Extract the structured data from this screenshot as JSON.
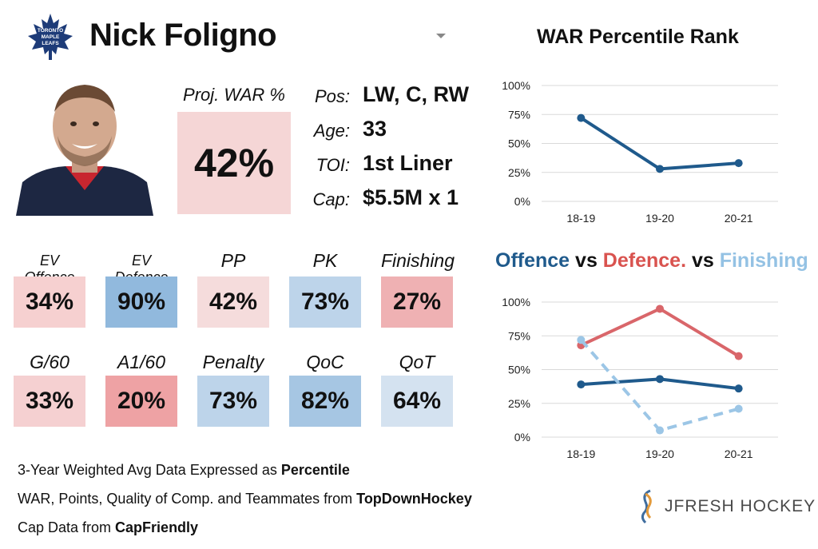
{
  "player": {
    "name": "Nick Foligno",
    "team_logo_text": [
      "TORONTO",
      "MAPLE",
      "LEAFS"
    ]
  },
  "proj_war": {
    "label": "Proj. WAR %",
    "value": "42%",
    "color": "#f5d6d6"
  },
  "bio": [
    {
      "label": "Pos:",
      "value": "LW, C, RW"
    },
    {
      "label": "Age:",
      "value": "33"
    },
    {
      "label": "TOI:",
      "value": "1st Liner"
    },
    {
      "label": "Cap:",
      "value": "$5.5M x 1"
    }
  ],
  "stats_row1": [
    {
      "label": "EV Offence",
      "value": "34%",
      "color": "#f6d0d0"
    },
    {
      "label": "EV Defence",
      "value": "90%",
      "color": "#91b9dd"
    },
    {
      "label": "PP",
      "value": "42%",
      "color": "#f5dcdc"
    },
    {
      "label": "PK",
      "value": "73%",
      "color": "#bdd4ea"
    },
    {
      "label": "Finishing",
      "value": "27%",
      "color": "#efb1b3"
    }
  ],
  "stats_row2": [
    {
      "label": "G/60",
      "value": "33%",
      "color": "#f5d0d1"
    },
    {
      "label": "A1/60",
      "value": "20%",
      "color": "#eea2a4"
    },
    {
      "label": "Penalty",
      "value": "73%",
      "color": "#bdd4ea"
    },
    {
      "label": "QoC",
      "value": "82%",
      "color": "#a6c6e3"
    },
    {
      "label": "QoT",
      "value": "64%",
      "color": "#d4e2f0"
    }
  ],
  "footer": [
    {
      "text": "3-Year Weighted Avg Data Expressed as ",
      "bold": "Percentile"
    },
    {
      "text": "WAR, Points, Quality of Comp. and Teammates from ",
      "bold": "TopDownHockey"
    },
    {
      "text": "Cap Data from ",
      "bold": "CapFriendly"
    }
  ],
  "brand": {
    "name": "JFRESH HOCKEY"
  },
  "chart_data": [
    {
      "type": "line",
      "title": "WAR Percentile Rank",
      "categories": [
        "18-19",
        "19-20",
        "20-21"
      ],
      "ylim": [
        0,
        100
      ],
      "yticks": [
        "0%",
        "25%",
        "50%",
        "75%",
        "100%"
      ],
      "series": [
        {
          "values": [
            72,
            28,
            33
          ],
          "color": "#1f5a8c",
          "dashed": false
        }
      ]
    },
    {
      "type": "line",
      "title_parts": [
        {
          "text": "Offence",
          "color": "#1f5a8c"
        },
        {
          "text": " vs ",
          "color": "#111111"
        },
        {
          "text": "Defence.",
          "color": "#d9534f"
        },
        {
          "text": " vs ",
          "color": "#111111"
        },
        {
          "text": "Finishing",
          "color": "#94c2e4"
        }
      ],
      "categories": [
        "18-19",
        "19-20",
        "20-21"
      ],
      "ylim": [
        0,
        100
      ],
      "yticks": [
        "0%",
        "25%",
        "50%",
        "75%",
        "100%"
      ],
      "series": [
        {
          "name": "Offence",
          "values": [
            39,
            43,
            36
          ],
          "color": "#1f5a8c",
          "dashed": false
        },
        {
          "name": "Defence.",
          "values": [
            68,
            95,
            60
          ],
          "color": "#d9666a",
          "dashed": false
        },
        {
          "name": "Finishing",
          "values": [
            72,
            5,
            21
          ],
          "color": "#9cc6e6",
          "dashed": true
        }
      ]
    }
  ]
}
